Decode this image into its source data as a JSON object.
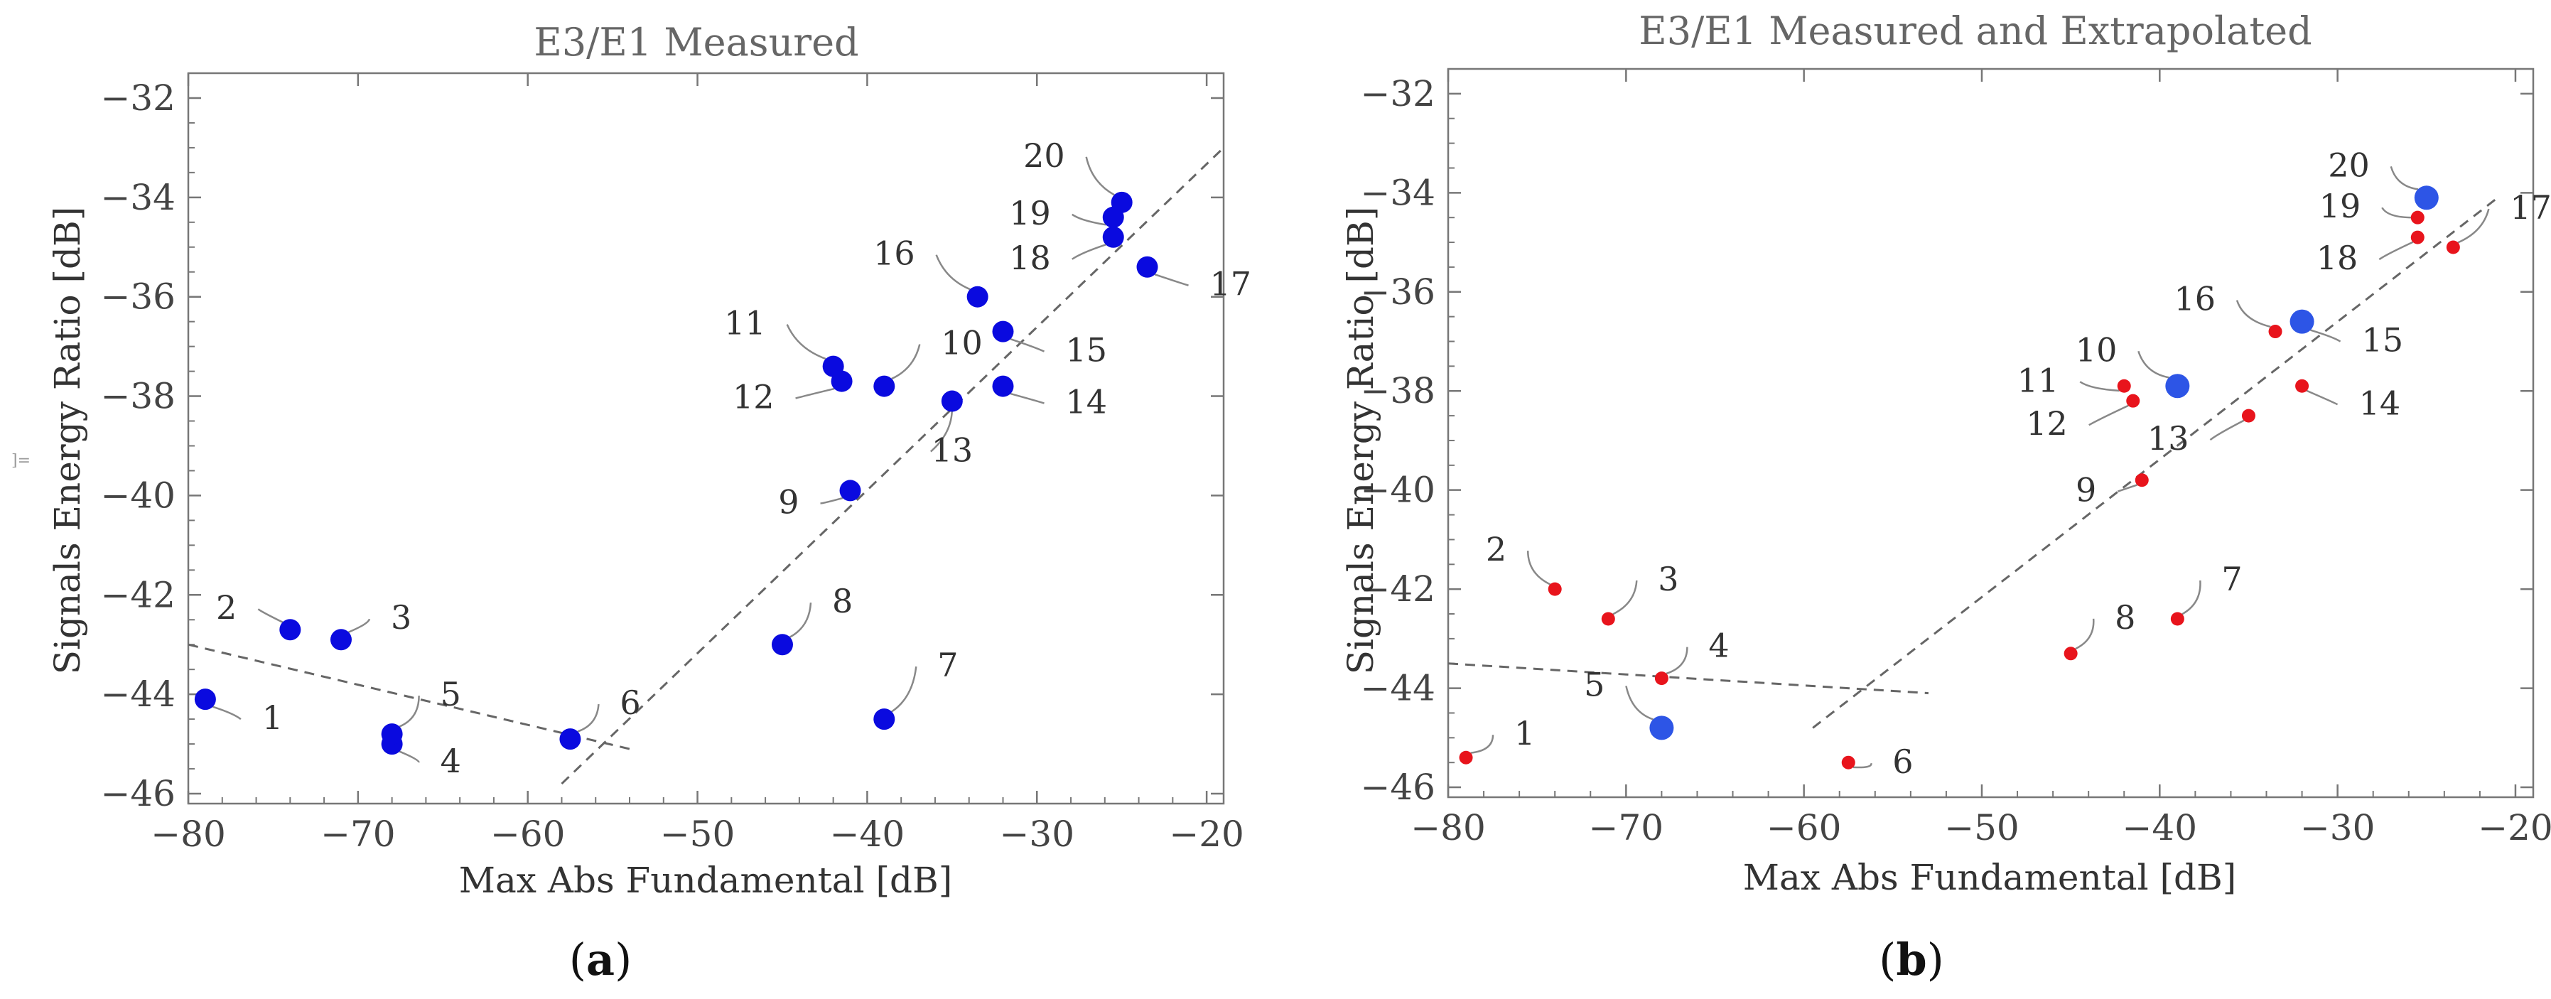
{
  "colors": {
    "measured": "#0a0adf",
    "red": "#e8141c",
    "blue_marker": "#2d55e6",
    "trend": "#666666",
    "axis": "#777777"
  },
  "chart_data": [
    {
      "type": "scatter",
      "title": "E3/E1   Measured",
      "xlabel": "Max Abs Fundamental [dB]",
      "ylabel": "Signals Energy Ratio [dB]",
      "panel_label": "a",
      "xlim": [
        -80,
        -19
      ],
      "ylim": [
        -46.2,
        -31.5
      ],
      "xticks": [
        -80,
        -70,
        -60,
        -50,
        -40,
        -30,
        -20
      ],
      "xtick_labels": [
        "−80",
        "−70",
        "−60",
        "−50",
        "−40",
        "−30",
        "−20"
      ],
      "yticks": [
        -46,
        -44,
        -42,
        -40,
        -38,
        -36,
        -34,
        -32
      ],
      "ytick_labels": [
        "−46",
        "−44",
        "−42",
        "−40",
        "−38",
        "−36",
        "−34",
        "−32"
      ],
      "points": [
        {
          "id": "1",
          "x": -79,
          "y": -44.1
        },
        {
          "id": "2",
          "x": -74,
          "y": -42.7
        },
        {
          "id": "3",
          "x": -71,
          "y": -42.9
        },
        {
          "id": "4",
          "x": -68,
          "y": -45.0
        },
        {
          "id": "5",
          "x": -68,
          "y": -44.8
        },
        {
          "id": "6",
          "x": -57.5,
          "y": -44.9
        },
        {
          "id": "7",
          "x": -39,
          "y": -44.5
        },
        {
          "id": "8",
          "x": -45,
          "y": -43.0
        },
        {
          "id": "9",
          "x": -41,
          "y": -39.9
        },
        {
          "id": "10",
          "x": -39,
          "y": -37.8
        },
        {
          "id": "11",
          "x": -42,
          "y": -37.4
        },
        {
          "id": "12",
          "x": -41.5,
          "y": -37.7
        },
        {
          "id": "13",
          "x": -35,
          "y": -38.1
        },
        {
          "id": "14",
          "x": -32,
          "y": -37.8
        },
        {
          "id": "15",
          "x": -32,
          "y": -36.7
        },
        {
          "id": "16",
          "x": -33.5,
          "y": -36.0
        },
        {
          "id": "17",
          "x": -23.5,
          "y": -35.4
        },
        {
          "id": "18",
          "x": -25.5,
          "y": -34.8
        },
        {
          "id": "19",
          "x": -25.5,
          "y": -34.4
        },
        {
          "id": "20",
          "x": -25,
          "y": -34.1
        }
      ],
      "trend_lines": [
        {
          "x": [
            -80,
            -54
          ],
          "y": [
            -43.0,
            -45.1
          ]
        },
        {
          "x": [
            -58,
            -19
          ],
          "y": [
            -45.8,
            -33.0
          ]
        }
      ]
    },
    {
      "type": "scatter",
      "title": "E3/E1   Measured and Extrapolated",
      "xlabel": "Max Abs Fundamental [dB]",
      "ylabel": "Signals Energy Ratio [dB]",
      "panel_label": "b",
      "xlim": [
        -80,
        -19
      ],
      "ylim": [
        -46.2,
        -31.5
      ],
      "xticks": [
        -80,
        -70,
        -60,
        -50,
        -40,
        -30,
        -20
      ],
      "xtick_labels": [
        "−80",
        "−70",
        "−60",
        "−50",
        "−40",
        "−30",
        "−20"
      ],
      "yticks": [
        -46,
        -44,
        -42,
        -40,
        -38,
        -36,
        -34,
        -32
      ],
      "ytick_labels": [
        "−46",
        "−44",
        "−42",
        "−40",
        "−38",
        "−36",
        "−34",
        "−32"
      ],
      "points": [
        {
          "id": "1",
          "x": -79,
          "y": -45.4,
          "kind": "extrapolated"
        },
        {
          "id": "2",
          "x": -74,
          "y": -42.0,
          "kind": "extrapolated"
        },
        {
          "id": "3",
          "x": -71,
          "y": -42.6,
          "kind": "extrapolated"
        },
        {
          "id": "4",
          "x": -68,
          "y": -43.8,
          "kind": "extrapolated"
        },
        {
          "id": "5",
          "x": -68,
          "y": -44.8,
          "kind": "measured"
        },
        {
          "id": "6",
          "x": -57.5,
          "y": -45.5,
          "kind": "extrapolated"
        },
        {
          "id": "7",
          "x": -39,
          "y": -42.6,
          "kind": "extrapolated"
        },
        {
          "id": "8",
          "x": -45,
          "y": -43.3,
          "kind": "extrapolated"
        },
        {
          "id": "9",
          "x": -41,
          "y": -39.8,
          "kind": "extrapolated"
        },
        {
          "id": "10",
          "x": -39,
          "y": -37.9,
          "kind": "measured"
        },
        {
          "id": "11",
          "x": -42,
          "y": -37.9,
          "kind": "extrapolated"
        },
        {
          "id": "12",
          "x": -41.5,
          "y": -38.2,
          "kind": "extrapolated"
        },
        {
          "id": "13",
          "x": -35,
          "y": -38.5,
          "kind": "extrapolated"
        },
        {
          "id": "14",
          "x": -32,
          "y": -37.9,
          "kind": "extrapolated"
        },
        {
          "id": "15",
          "x": -32,
          "y": -36.6,
          "kind": "measured"
        },
        {
          "id": "16",
          "x": -33.5,
          "y": -36.8,
          "kind": "extrapolated"
        },
        {
          "id": "17",
          "x": -23.5,
          "y": -35.1,
          "kind": "extrapolated"
        },
        {
          "id": "18",
          "x": -25.5,
          "y": -34.9,
          "kind": "extrapolated"
        },
        {
          "id": "19",
          "x": -25.5,
          "y": -34.5,
          "kind": "extrapolated"
        },
        {
          "id": "20",
          "x": -25,
          "y": -34.1,
          "kind": "measured"
        }
      ],
      "trend_lines": [
        {
          "x": [
            -80,
            -53
          ],
          "y": [
            -43.5,
            -44.1
          ]
        },
        {
          "x": [
            -59.5,
            -21
          ],
          "y": [
            -44.8,
            -34.1
          ]
        }
      ]
    }
  ],
  "stray_mark": "]="
}
